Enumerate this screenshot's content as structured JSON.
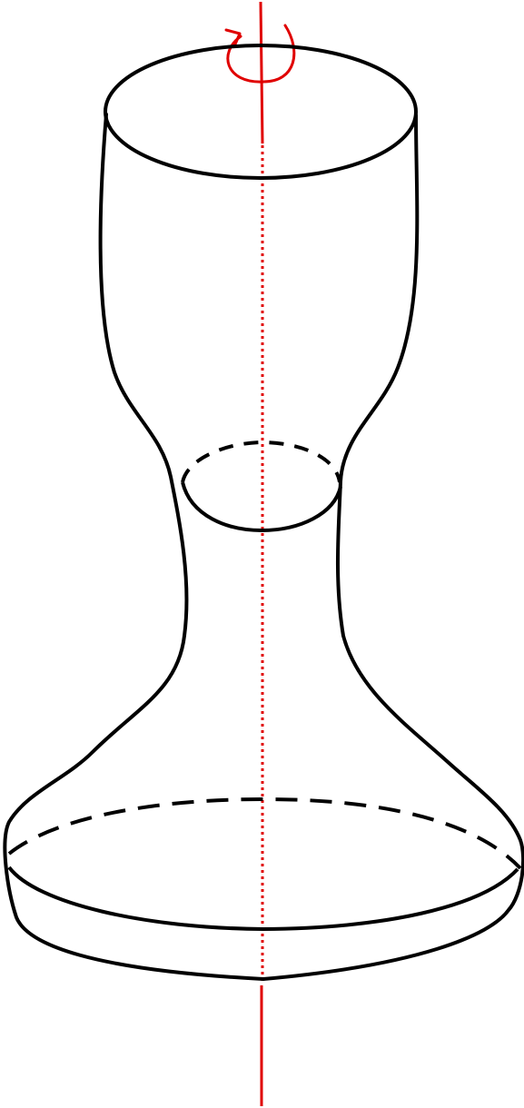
{
  "diagram": {
    "colors": {
      "outline": "#000000",
      "axis": "#e00000",
      "background": "#ffffff"
    },
    "surface_kind": "surface of revolution",
    "cross_sections": [
      "top-rim",
      "neck-waist",
      "base-equator"
    ],
    "axis_style": {
      "outside": "solid",
      "inside": "dotted",
      "rotation_marker": "circular-arrow"
    }
  }
}
